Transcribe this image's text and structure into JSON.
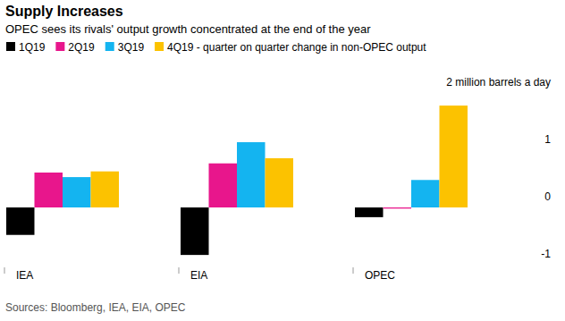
{
  "chart_data": {
    "type": "bar",
    "title": "Supply Increases",
    "subtitle": "OPEC sees its rivals' output growth concentrated at the end of the year",
    "source": "Sources: Bloomberg, IEA, EIA, OPEC",
    "categories": [
      "IEA",
      "EIA",
      "OPEC"
    ],
    "series": [
      {
        "name": "1Q19",
        "color": "#000000",
        "values": [
          -0.48,
          -0.83,
          -0.17
        ]
      },
      {
        "name": "2Q19",
        "color": "#e8168c",
        "values": [
          0.61,
          0.77,
          -0.02
        ]
      },
      {
        "name": "3Q19",
        "color": "#14b4f0",
        "values": [
          0.53,
          1.14,
          0.48
        ]
      },
      {
        "name": "4Q19 - quarter on quarter change in non-OPEC output",
        "color": "#fcc200",
        "values": [
          0.63,
          0.86,
          1.78
        ]
      }
    ],
    "ylim": [
      -1,
      2
    ],
    "yticks": [
      {
        "value": 2,
        "label": "2 million barrels a day"
      },
      1,
      0,
      -1
    ],
    "grid": false
  }
}
